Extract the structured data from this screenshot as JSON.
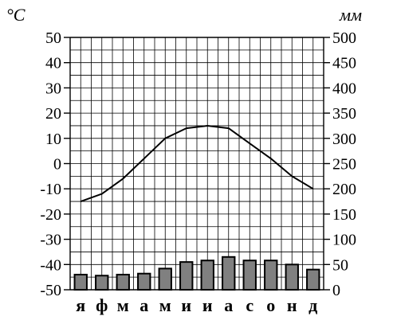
{
  "chart_data": {
    "type": "climate-chart",
    "left_axis": {
      "label": "°C",
      "ticks": [
        50,
        40,
        30,
        20,
        10,
        0,
        -10,
        -20,
        -30,
        -40,
        -50
      ],
      "ylim": [
        -50,
        50
      ]
    },
    "right_axis": {
      "label": "мм",
      "ticks": [
        500,
        450,
        400,
        350,
        300,
        250,
        200,
        150,
        100,
        50,
        0
      ],
      "ylim": [
        0,
        500
      ]
    },
    "categories": [
      "я",
      "ф",
      "м",
      "а",
      "м",
      "и",
      "и",
      "а",
      "с",
      "о",
      "н",
      "д"
    ],
    "temperature": [
      -15,
      -12,
      -6,
      2,
      10,
      14,
      15,
      14,
      8,
      2,
      -5,
      -10
    ],
    "precipitation": [
      30,
      28,
      30,
      32,
      42,
      55,
      58,
      65,
      58,
      58,
      50,
      40
    ],
    "grid": true,
    "colors": {
      "bar_fill": "#808080",
      "bar_stroke": "#000000",
      "line": "#000000",
      "grid": "#000000"
    }
  }
}
